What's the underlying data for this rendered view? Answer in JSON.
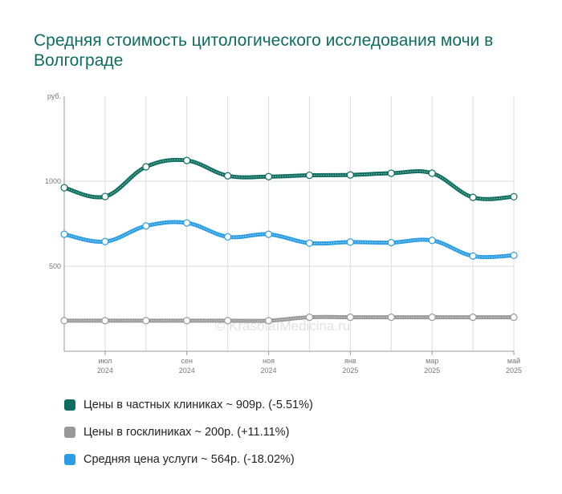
{
  "title": "Средняя стоимость цитологического исследования мочи в Волгограде",
  "watermark": "© KrasotaIMedicina.ru",
  "legend": [
    {
      "color": "#0d6e5f",
      "label": "Цены в частных клиниках ~ 909р. (-5.51%)"
    },
    {
      "color": "#999999",
      "label": "Цены в госклиниках ~ 200р. (+11.11%)"
    },
    {
      "color": "#2b9de3",
      "label": "Средняя цена услуги ~ 564р. (-18.02%)"
    }
  ],
  "chart_data": {
    "type": "line",
    "title": "Средняя стоимость цитологического исследования мочи в Волгограде",
    "ylabel": "руб.",
    "ylim": [
      0,
      1500
    ],
    "yticks": [
      {
        "value": 500,
        "label": "500"
      },
      {
        "value": 1000,
        "label": "1000"
      }
    ],
    "x": [
      "2024-06",
      "2024-07",
      "2024-08",
      "2024-09",
      "2024-10",
      "2024-11",
      "2024-12",
      "2025-01",
      "2025-02",
      "2025-03",
      "2025-04",
      "2025-05"
    ],
    "xticks": [
      {
        "index": 1,
        "month": "июл",
        "year": "2024"
      },
      {
        "index": 3,
        "month": "сен",
        "year": "2024"
      },
      {
        "index": 5,
        "month": "ноя",
        "year": "2024"
      },
      {
        "index": 7,
        "month": "янв",
        "year": "2025"
      },
      {
        "index": 9,
        "month": "мар",
        "year": "2025"
      },
      {
        "index": 11,
        "month": "май",
        "year": "2025"
      }
    ],
    "series": [
      {
        "name": "Цены в частных клиниках",
        "color": "#0d6e5f",
        "values": [
          962,
          910,
          1085,
          1122,
          1032,
          1027,
          1035,
          1037,
          1047,
          1047,
          905,
          909
        ]
      },
      {
        "name": "Цены в госклиниках",
        "color": "#999999",
        "values": [
          180,
          180,
          180,
          180,
          180,
          180,
          200,
          200,
          200,
          200,
          200,
          200
        ]
      },
      {
        "name": "Средняя цена услуги",
        "color": "#2b9de3",
        "values": [
          688,
          645,
          737,
          755,
          673,
          688,
          636,
          642,
          639,
          652,
          560,
          564
        ]
      }
    ],
    "grid": true
  }
}
